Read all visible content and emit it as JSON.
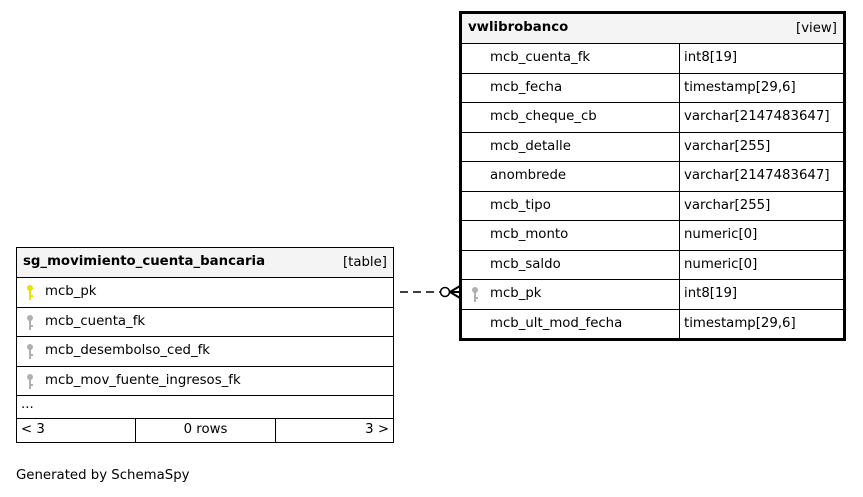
{
  "tables": [
    {
      "name": "sg_movimiento_cuenta_bancaria",
      "kind": "[table]",
      "columns": [
        {
          "name": "mcb_pk",
          "key": "primary"
        },
        {
          "name": "mcb_cuenta_fk",
          "key": "foreign"
        },
        {
          "name": "mcb_desembolso_ced_fk",
          "key": "foreign"
        },
        {
          "name": "mcb_mov_fuente_ingresos_fk",
          "key": "foreign"
        }
      ],
      "ellipsis": "...",
      "footer": {
        "parents": "< 3",
        "rows": "0 rows",
        "children": "3 >"
      }
    },
    {
      "name": "vwlibrobanco",
      "kind": "[view]",
      "columns": [
        {
          "name": "mcb_cuenta_fk",
          "type": "int8[19]"
        },
        {
          "name": "mcb_fecha",
          "type": "timestamp[29,6]"
        },
        {
          "name": "mcb_cheque_cb",
          "type": "varchar[2147483647]"
        },
        {
          "name": "mcb_detalle",
          "type": "varchar[255]"
        },
        {
          "name": "anombrede",
          "type": "varchar[2147483647]"
        },
        {
          "name": "mcb_tipo",
          "type": "varchar[255]"
        },
        {
          "name": "mcb_monto",
          "type": "numeric[0]"
        },
        {
          "name": "mcb_saldo",
          "type": "numeric[0]"
        },
        {
          "name": "mcb_pk",
          "type": "int8[19]",
          "key": "foreign"
        },
        {
          "name": "mcb_ult_mod_fecha",
          "type": "timestamp[29,6]"
        }
      ]
    }
  ],
  "colors": {
    "primary_key": "#e5e500",
    "foreign_key": "#b0b0b0",
    "header_bg": "#f4f4f4"
  },
  "generated_by": "Generated by SchemaSpy"
}
